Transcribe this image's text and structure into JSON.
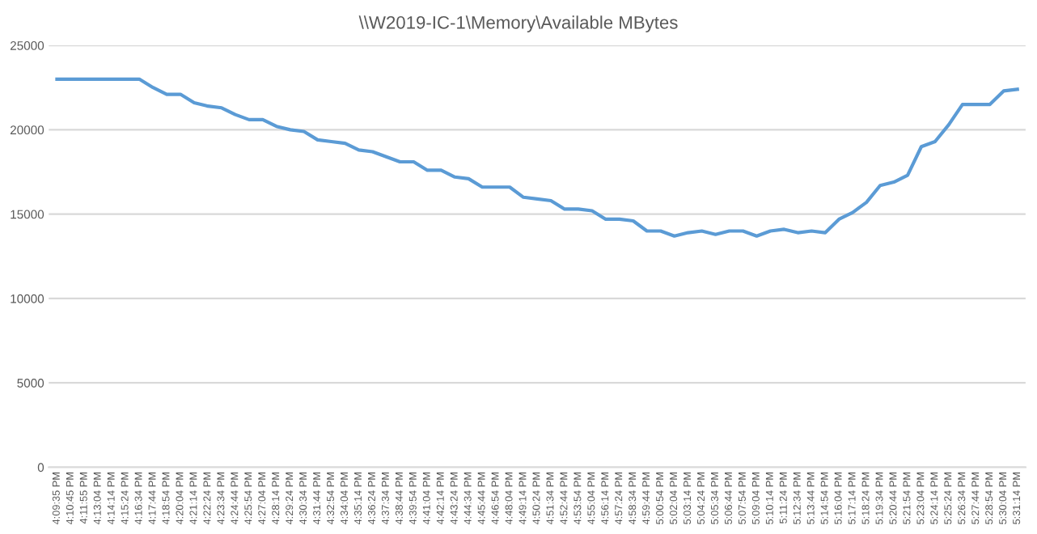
{
  "chart_data": {
    "type": "line",
    "title": "\\\\W2019-IC-1\\Memory\\Available MBytes",
    "categories": [
      "4:09:35 PM",
      "4:10:45 PM",
      "4:11:55 PM",
      "4:13:04 PM",
      "4:14:14 PM",
      "4:15:24 PM",
      "4:16:34 PM",
      "4:17:44 PM",
      "4:18:54 PM",
      "4:20:04 PM",
      "4:21:14 PM",
      "4:22:24 PM",
      "4:23:34 PM",
      "4:24:44 PM",
      "4:25:54 PM",
      "4:27:04 PM",
      "4:28:14 PM",
      "4:29:24 PM",
      "4:30:34 PM",
      "4:31:44 PM",
      "4:32:54 PM",
      "4:34:04 PM",
      "4:35:14 PM",
      "4:36:24 PM",
      "4:37:34 PM",
      "4:38:44 PM",
      "4:39:54 PM",
      "4:41:04 PM",
      "4:42:14 PM",
      "4:43:24 PM",
      "4:44:34 PM",
      "4:45:44 PM",
      "4:46:54 PM",
      "4:48:04 PM",
      "4:49:14 PM",
      "4:50:24 PM",
      "4:51:34 PM",
      "4:52:44 PM",
      "4:53:54 PM",
      "4:55:04 PM",
      "4:56:14 PM",
      "4:57:24 PM",
      "4:58:34 PM",
      "4:59:44 PM",
      "5:00:54 PM",
      "5:02:04 PM",
      "5:03:14 PM",
      "5:04:24 PM",
      "5:05:34 PM",
      "5:06:44 PM",
      "5:07:54 PM",
      "5:09:04 PM",
      "5:10:14 PM",
      "5:11:24 PM",
      "5:12:34 PM",
      "5:13:44 PM",
      "5:14:54 PM",
      "5:16:04 PM",
      "5:17:14 PM",
      "5:18:24 PM",
      "5:19:34 PM",
      "5:20:44 PM",
      "5:21:54 PM",
      "5:23:04 PM",
      "5:24:14 PM",
      "5:25:24 PM",
      "5:26:34 PM",
      "5:27:44 PM",
      "5:28:54 PM",
      "5:30:04 PM",
      "5:31:14 PM"
    ],
    "series": [
      {
        "color": "#5b9bd5",
        "values": [
          23000,
          23000,
          23000,
          23000,
          23000,
          23000,
          23000,
          22500,
          22100,
          22100,
          21600,
          21400,
          21300,
          20900,
          20600,
          20600,
          20200,
          20000,
          19900,
          19400,
          19300,
          19200,
          18800,
          18700,
          18400,
          18100,
          18100,
          17600,
          17600,
          17200,
          17100,
          16600,
          16600,
          16600,
          16000,
          15900,
          15800,
          15300,
          15300,
          15200,
          14700,
          14700,
          14600,
          14000,
          14000,
          13700,
          13900,
          14000,
          13800,
          14000,
          14000,
          13700,
          14000,
          14100,
          13900,
          14000,
          13900,
          14700,
          15100,
          15700,
          16700,
          16900,
          17300,
          19000,
          19300,
          20300,
          21500,
          21500,
          21500,
          22300,
          22400
        ]
      }
    ],
    "ylim": [
      0,
      25000
    ],
    "yticks": [
      0,
      5000,
      10000,
      15000,
      20000,
      25000
    ],
    "grid": "y",
    "legend": false,
    "marker": "none",
    "line_style": "solid"
  }
}
